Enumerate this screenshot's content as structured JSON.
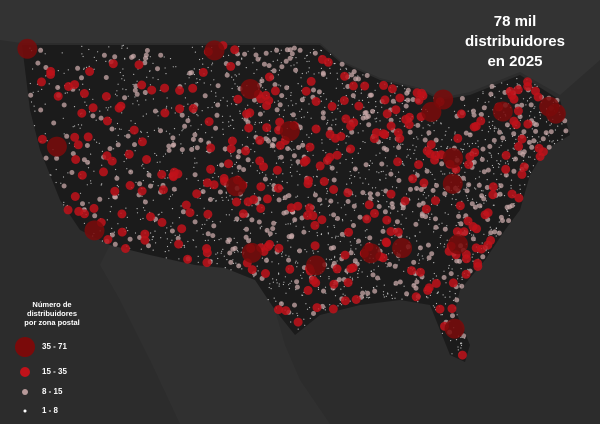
{
  "title": {
    "lines": [
      "78 mil",
      "distribuidores",
      "en 2025"
    ]
  },
  "legend": {
    "title": [
      "Número de",
      "distribuidores",
      "por zona postal"
    ],
    "items": [
      {
        "label": "35 - 71"
      },
      {
        "label": "15 - 35"
      },
      {
        "label": "8 - 15"
      },
      {
        "label": "1 - 8"
      }
    ]
  }
}
